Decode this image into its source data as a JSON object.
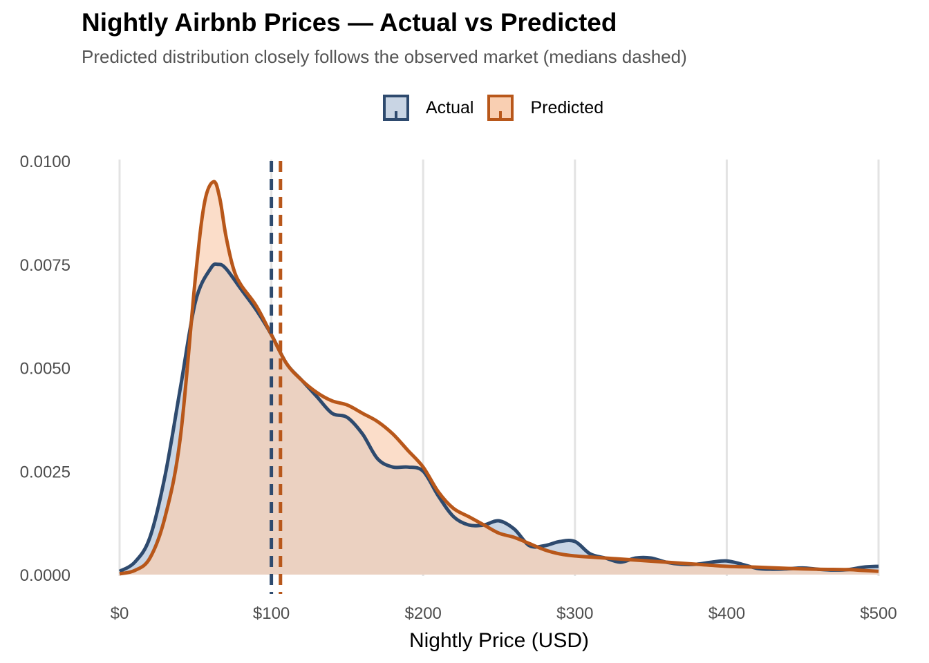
{
  "chart_data": {
    "type": "area",
    "title": "Nightly Airbnb Prices — Actual vs Predicted",
    "subtitle": "Predicted distribution closely follows the observed market (medians dashed)",
    "xlabel": "Nightly Price (USD)",
    "ylabel": "",
    "xlim": [
      0,
      500
    ],
    "ylim": [
      0,
      0.01
    ],
    "x_ticks": [
      "$0",
      "$100",
      "$200",
      "$300",
      "$400",
      "$500"
    ],
    "x_tick_values": [
      0,
      100,
      200,
      300,
      400,
      500
    ],
    "y_ticks": [
      "0.0000",
      "0.0025",
      "0.0050",
      "0.0075",
      "0.0100"
    ],
    "y_tick_values": [
      0,
      0.0025,
      0.005,
      0.0075,
      0.01
    ],
    "grid": "vertical major lines",
    "legend_position": "top",
    "series": [
      {
        "name": "Actual",
        "line_color": "#2e4a6e",
        "fill_color": "#c9d5e4",
        "median": 100,
        "points": [
          [
            0,
            8e-05
          ],
          [
            10,
            0.0003
          ],
          [
            20,
            0.0009
          ],
          [
            30,
            0.0024
          ],
          [
            40,
            0.0045
          ],
          [
            50,
            0.0066
          ],
          [
            60,
            0.0074
          ],
          [
            65,
            0.0075
          ],
          [
            70,
            0.0074
          ],
          [
            80,
            0.0069
          ],
          [
            90,
            0.0064
          ],
          [
            100,
            0.0058
          ],
          [
            110,
            0.0051
          ],
          [
            120,
            0.0047
          ],
          [
            130,
            0.0043
          ],
          [
            140,
            0.0039
          ],
          [
            150,
            0.0038
          ],
          [
            160,
            0.0034
          ],
          [
            170,
            0.0028
          ],
          [
            180,
            0.0026
          ],
          [
            190,
            0.0026
          ],
          [
            200,
            0.0025
          ],
          [
            210,
            0.0019
          ],
          [
            220,
            0.0014
          ],
          [
            230,
            0.0012
          ],
          [
            240,
            0.0012
          ],
          [
            250,
            0.0013
          ],
          [
            260,
            0.0011
          ],
          [
            270,
            0.0007
          ],
          [
            280,
            0.0007
          ],
          [
            290,
            0.0008
          ],
          [
            300,
            0.0008
          ],
          [
            310,
            0.0005
          ],
          [
            320,
            0.0004
          ],
          [
            330,
            0.0003
          ],
          [
            340,
            0.0004
          ],
          [
            350,
            0.0004
          ],
          [
            360,
            0.0003
          ],
          [
            370,
            0.00025
          ],
          [
            380,
            0.00025
          ],
          [
            390,
            0.0003
          ],
          [
            400,
            0.00033
          ],
          [
            410,
            0.00025
          ],
          [
            420,
            0.00015
          ],
          [
            430,
            0.00013
          ],
          [
            440,
            0.00014
          ],
          [
            450,
            0.00016
          ],
          [
            460,
            0.00013
          ],
          [
            470,
            0.00011
          ],
          [
            480,
            0.00012
          ],
          [
            490,
            0.00018
          ],
          [
            500,
            0.0002
          ]
        ]
      },
      {
        "name": "Predicted",
        "line_color": "#b8571a",
        "fill_color": "#f9cfb2",
        "median": 106,
        "points": [
          [
            0,
            2e-05
          ],
          [
            10,
            0.0001
          ],
          [
            20,
            0.0004
          ],
          [
            30,
            0.0014
          ],
          [
            40,
            0.0033
          ],
          [
            50,
            0.0072
          ],
          [
            56,
            0.009
          ],
          [
            62,
            0.0095
          ],
          [
            66,
            0.0091
          ],
          [
            70,
            0.0082
          ],
          [
            75,
            0.0074
          ],
          [
            80,
            0.007
          ],
          [
            90,
            0.0065
          ],
          [
            100,
            0.0058
          ],
          [
            110,
            0.0051
          ],
          [
            120,
            0.0047
          ],
          [
            130,
            0.0044
          ],
          [
            140,
            0.0042
          ],
          [
            150,
            0.0041
          ],
          [
            160,
            0.0039
          ],
          [
            170,
            0.0037
          ],
          [
            180,
            0.0034
          ],
          [
            190,
            0.003
          ],
          [
            200,
            0.0026
          ],
          [
            210,
            0.002
          ],
          [
            220,
            0.0016
          ],
          [
            230,
            0.0014
          ],
          [
            240,
            0.0012
          ],
          [
            250,
            0.001
          ],
          [
            260,
            0.0009
          ],
          [
            270,
            0.00075
          ],
          [
            280,
            0.0006
          ],
          [
            290,
            0.0005
          ],
          [
            300,
            0.00045
          ],
          [
            320,
            0.0004
          ],
          [
            340,
            0.00035
          ],
          [
            360,
            0.0003
          ],
          [
            380,
            0.00025
          ],
          [
            400,
            0.0002
          ],
          [
            420,
            0.00018
          ],
          [
            440,
            0.00015
          ],
          [
            460,
            0.00013
          ],
          [
            480,
            0.00012
          ],
          [
            490,
            0.0001
          ],
          [
            500,
            8e-05
          ]
        ]
      }
    ]
  }
}
